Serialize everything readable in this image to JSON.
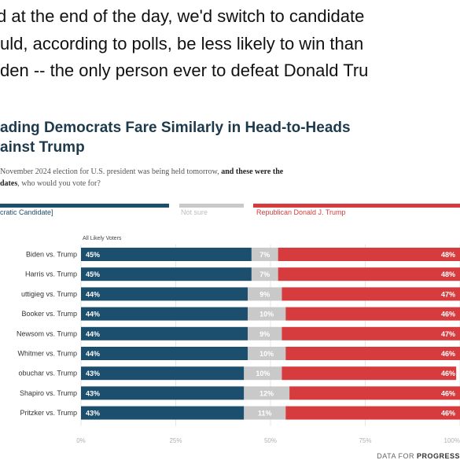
{
  "quote": {
    "lines": [
      "d at the end of the day, we'd switch to candidate",
      "uld, according to polls, be less likely to win than",
      "den -- the only person ever to defeat Donald Tru"
    ]
  },
  "chart_data": {
    "type": "bar",
    "stacked": true,
    "orientation": "horizontal",
    "title_lines": [
      "ading Democrats Fare Similarly in Head-to-Heads",
      "ainst Trump"
    ],
    "subtitle_lines": [
      "November 2024 election for U.S. president was being held tomorrow, and these were the",
      "dates, who would you vote for?"
    ],
    "subtitle_bold": [
      "and these were the",
      "dates"
    ],
    "group_label": "All Likely Voters",
    "categories": [
      "Biden vs. Trump",
      "Harris vs. Trump",
      "uttigieg vs. Trump",
      "Booker vs. Trump",
      "Newsom vs. Trump",
      "Whitmer vs. Trump",
      "obuchar vs. Trump",
      "Shapiro vs. Trump",
      "Pritzker vs. Trump"
    ],
    "series": [
      {
        "name": "cratic Candidate]",
        "color": "#1c4f6e",
        "values": [
          45,
          45,
          44,
          44,
          44,
          44,
          43,
          43,
          43
        ]
      },
      {
        "name": "Not sure",
        "color": "#c9c9c9",
        "values": [
          7,
          7,
          9,
          10,
          9,
          10,
          10,
          12,
          11
        ]
      },
      {
        "name": "Republican Donald J. Trump",
        "color": "#d63b3d",
        "values": [
          48,
          48,
          47,
          46,
          47,
          46,
          46,
          46,
          46
        ]
      }
    ],
    "value_labels": [
      [
        "45%",
        "7%",
        "48%"
      ],
      [
        "45%",
        "7%",
        "48%"
      ],
      [
        "44%",
        "9%",
        "47%"
      ],
      [
        "44%",
        "10%",
        "46%"
      ],
      [
        "44%",
        "9%",
        "47%"
      ],
      [
        "44%",
        "10%",
        "46%"
      ],
      [
        "43%",
        "10%",
        "46%"
      ],
      [
        "43%",
        "12%",
        "46%"
      ],
      [
        "43%",
        "11%",
        "46%"
      ]
    ],
    "x_ticks": [
      "0%",
      "25%",
      "50%",
      "75%",
      "100%"
    ],
    "xlim": [
      0,
      100
    ],
    "legend_position": "top"
  },
  "footer": {
    "brand_prefix": "DATA FOR",
    "brand_name": "PROGRESS"
  }
}
